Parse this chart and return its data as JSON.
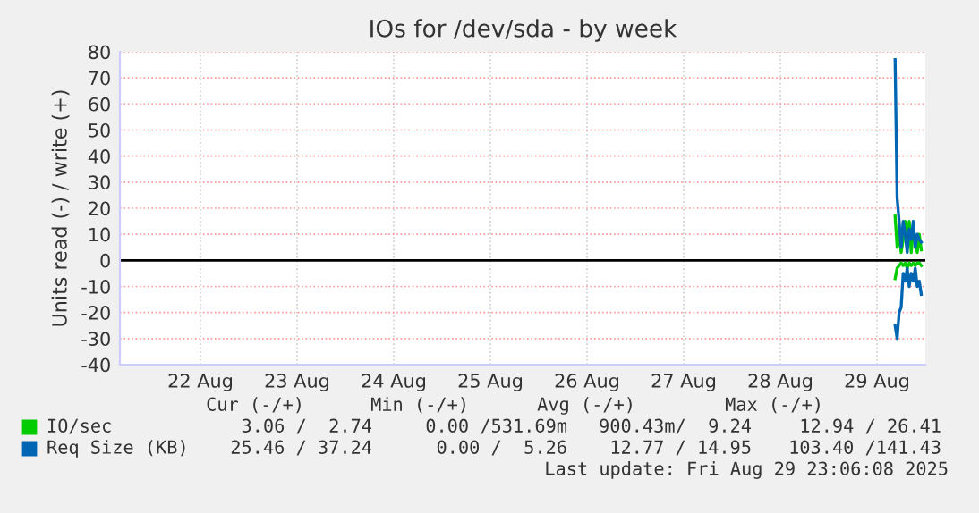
{
  "chart_data": {
    "type": "line",
    "title": "IOs for /dev/sda - by week",
    "ylabel": "Units read (-) / write (+)",
    "x": [
      "2025-08-29T16:30",
      "2025-08-29T17:00",
      "2025-08-29T17:30",
      "2025-08-29T18:00",
      "2025-08-29T18:30",
      "2025-08-29T19:00",
      "2025-08-29T19:30",
      "2025-08-29T20:00",
      "2025-08-29T20:30",
      "2025-08-29T21:00",
      "2025-08-29T21:30",
      "2025-08-29T22:00",
      "2025-08-29T22:30",
      "2025-08-29T23:00"
    ],
    "series": [
      {
        "name": "IO/sec",
        "color": "#00cc00",
        "values": [
          17,
          5,
          10,
          3,
          8,
          15,
          5,
          15,
          3,
          12,
          8,
          3,
          10,
          4
        ]
      },
      {
        "color": "#00cc00",
        "values": [
          -7,
          -3,
          -2,
          -1,
          -2,
          -1,
          -3,
          -1,
          -2,
          -1,
          -2,
          -1,
          -1,
          -2
        ]
      },
      {
        "name": "Req Size (KB)",
        "color": "#0066b3",
        "values": [
          77,
          24,
          15,
          5,
          15,
          10,
          3,
          12,
          8,
          15,
          5,
          10,
          8,
          7
        ]
      },
      {
        "color": "#0066b3",
        "values": [
          -25,
          -30,
          -20,
          -18,
          -5,
          -8,
          -3,
          -10,
          -5,
          -8,
          -3,
          -10,
          -8,
          -13
        ]
      }
    ],
    "xlim": [
      "2025-08-21T16:00",
      "2025-08-30T00:00"
    ],
    "xticks": [
      {
        "value": "2025-08-22T12:00",
        "label": "22 Aug"
      },
      {
        "value": "2025-08-23T12:00",
        "label": "23 Aug"
      },
      {
        "value": "2025-08-24T12:00",
        "label": "24 Aug"
      },
      {
        "value": "2025-08-25T12:00",
        "label": "25 Aug"
      },
      {
        "value": "2025-08-26T12:00",
        "label": "26 Aug"
      },
      {
        "value": "2025-08-27T12:00",
        "label": "27 Aug"
      },
      {
        "value": "2025-08-28T12:00",
        "label": "28 Aug"
      },
      {
        "value": "2025-08-29T12:00",
        "label": "29 Aug"
      }
    ],
    "ylim": [
      -40,
      80
    ],
    "yticks": [
      -40,
      -30,
      -20,
      -10,
      0,
      10,
      20,
      30,
      40,
      50,
      60,
      70,
      80
    ],
    "grid": true,
    "legend": "bottom",
    "marker": "none",
    "line_style": "solid",
    "ref_lines": [
      {
        "axis": "y",
        "value": 0,
        "label": null,
        "color": "#000000"
      }
    ],
    "annotations": [
      "Cur (-/+)",
      "Min (-/+)",
      "Avg (-/+)",
      "Max (-/+)",
      "3.06 /  2.74",
      "0.00 /531.69m",
      "900.43m/  9.24",
      "12.94 / 26.41",
      "25.46 / 37.24",
      "0.00 /  5.26",
      "12.77 / 14.95",
      "103.40 /141.43",
      "Last update: Fri Aug 29 23:06:08 2025"
    ]
  }
}
